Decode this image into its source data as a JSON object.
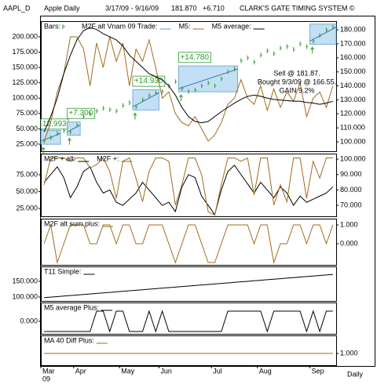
{
  "header": {
    "symbol": "AAPL_D",
    "name": "Apple Daily",
    "range": "3/17/09 - 9/16/09",
    "last": "181.870",
    "change": "+6.710",
    "system": "CLARK'S GATE TIMING SYSTEM ©"
  },
  "chart_data": [
    {
      "type": "combo",
      "series": [
        {
          "name": "Bars:",
          "mark": "bar",
          "axis": "y2",
          "color": "#2e9b2e",
          "values": [
            100.5,
            103,
            106,
            108,
            107,
            112,
            118,
            120,
            122,
            124,
            123,
            122,
            126,
            128,
            125,
            130,
            133,
            135,
            136,
            140,
            143,
            138,
            136,
            137,
            140,
            142,
            140,
            145,
            150,
            152,
            158,
            160,
            157,
            162,
            165,
            163,
            167,
            168,
            166,
            170,
            168,
            172,
            176,
            180,
            181.87
          ]
        },
        {
          "name": "M5:",
          "mark": "line",
          "color": "#a26b1c",
          "values": [
            30,
            60,
            110,
            140,
            200,
            200,
            180,
            120,
            190,
            150,
            200,
            160,
            190,
            120,
            180,
            160,
            195,
            150,
            100,
            110,
            75,
            60,
            55,
            70,
            50,
            30,
            40,
            60,
            90,
            100,
            130,
            100,
            90,
            120,
            80,
            115,
            85,
            110,
            95,
            125,
            70,
            100,
            110,
            85,
            120
          ]
        },
        {
          "name": "M5 average:",
          "mark": "line",
          "color": "#000000",
          "values": [
            45,
            70,
            100,
            140,
            170,
            195,
            210,
            215,
            212,
            205,
            200,
            195,
            185,
            170,
            160,
            150,
            140,
            135,
            130,
            120,
            105,
            85,
            70,
            62,
            60,
            62,
            70,
            78,
            85,
            92,
            98,
            103,
            105,
            103,
            100,
            98,
            97,
            96,
            95,
            95,
            93,
            92,
            90,
            92,
            95
          ]
        }
      ],
      "trades": {
        "name": "M2F alt Vnam 09 Trade:",
        "color": "#b9d9f2",
        "boxes": [
          {
            "start": 0,
            "end": 2,
            "label": "12.993"
          },
          {
            "start": 4,
            "end": 5,
            "label": "+7.300"
          },
          {
            "start": 14,
            "end": 17,
            "label": "+14.930"
          },
          {
            "start": 21,
            "end": 29,
            "label": "+14.780"
          },
          {
            "start": 41,
            "end": 44
          }
        ]
      },
      "notes": [
        "Sell @ 181.87.",
        "Bought 9/3/09 @ 166.55.",
        "GAIN 9.2%"
      ],
      "ylim": [
        13.5,
        225.5
      ],
      "yticks": [
        {
          "value": 25,
          "label": "25.000"
        },
        {
          "value": 50,
          "label": "50.000"
        },
        {
          "value": 75,
          "label": "75.000"
        },
        {
          "value": 100,
          "label": "100.000"
        },
        {
          "value": 125,
          "label": "125.000"
        },
        {
          "value": 150,
          "label": "150.000"
        },
        {
          "value": 175,
          "label": "175.000"
        },
        {
          "value": 200,
          "label": "200.000"
        }
      ],
      "y2lim": [
        93.3,
        186.2
      ],
      "y2ticks": [
        {
          "value": 100,
          "label": "100.000"
        },
        {
          "value": 110,
          "label": "110.000"
        },
        {
          "value": 120,
          "label": "120.000"
        },
        {
          "value": 130,
          "label": "130.000"
        },
        {
          "value": 140,
          "label": "140.000"
        },
        {
          "value": 150,
          "label": "150.000"
        },
        {
          "value": 160,
          "label": "160.000"
        },
        {
          "value": 170,
          "label": "170.000"
        },
        {
          "value": 180,
          "label": "180.000"
        }
      ]
    },
    {
      "type": "line",
      "series": [
        {
          "name": "M2F + alt:",
          "mark": "line",
          "axis": "y2",
          "color": "#000000",
          "values": [
            85,
            90,
            95,
            88,
            75,
            82,
            92,
            95,
            85,
            78,
            80,
            72,
            70,
            74,
            78,
            85,
            80,
            75,
            70,
            72,
            66,
            82,
            90,
            88,
            76,
            70,
            64,
            80,
            92,
            96,
            90,
            84,
            78,
            85,
            80,
            75,
            82,
            78,
            70,
            76,
            72,
            74,
            76,
            78,
            82
          ]
        },
        {
          "name": "M2F +:",
          "mark": "line",
          "color": "#a26b1c",
          "values": [
            60,
            100,
            100,
            100,
            95,
            100,
            100,
            85,
            90,
            100,
            80,
            40,
            95,
            100,
            70,
            35,
            80,
            100,
            100,
            95,
            30,
            60,
            100,
            100,
            75,
            20,
            15,
            60,
            100,
            100,
            95,
            100,
            45,
            100,
            100,
            30,
            60,
            35,
            100,
            100,
            40,
            95,
            70,
            100,
            100
          ]
        }
      ],
      "ylim": [
        13.4,
        106.4
      ],
      "yticks": [
        {
          "value": 25,
          "label": "25.000"
        },
        {
          "value": 50,
          "label": "50.000"
        },
        {
          "value": 75,
          "label": "75.000"
        }
      ],
      "y2lim": [
        62.9,
        103.6
      ],
      "y2ticks": [
        {
          "value": 70,
          "label": "70.000"
        },
        {
          "value": 80,
          "label": "80.000"
        },
        {
          "value": 90,
          "label": "90.000"
        },
        {
          "value": 100,
          "label": "100.000"
        }
      ]
    },
    {
      "type": "line",
      "series": [
        {
          "name": "M2F alt sum plus:",
          "mark": "line",
          "axis": "y2",
          "color": "#a26b1c",
          "values": [
            0,
            1,
            -1,
            0,
            1,
            1,
            1,
            0,
            0,
            1,
            1,
            0,
            1,
            1,
            0,
            0,
            1,
            1,
            1,
            0,
            -1,
            0,
            1,
            1,
            0,
            -1,
            -1,
            0,
            1,
            1,
            1,
            1,
            0,
            1,
            1,
            -1,
            0,
            0,
            1,
            1,
            0,
            1,
            1,
            0,
            1
          ]
        }
      ],
      "y2lim": [
        -1.125,
        1.333
      ],
      "y2ticks": [
        {
          "value": 0,
          "label": "0.000"
        },
        {
          "value": 1,
          "label": "1.000"
        }
      ]
    },
    {
      "type": "line",
      "series": [
        {
          "name": "T11 Simple:",
          "mark": "line",
          "color": "#000000",
          "values": [
            98,
            99.7,
            101.4,
            103,
            104.7,
            106.4,
            108.1,
            109.8,
            111.5,
            113.1,
            114.8,
            116.5,
            118.2,
            119.9,
            121.5,
            123.2,
            124.9,
            126.6,
            128.3,
            130,
            131.6,
            133.3,
            135,
            136.7,
            138.4,
            140,
            141.7,
            143.4,
            145.1,
            146.8,
            148.5,
            150.1,
            151.8,
            153.5,
            155.2,
            156.9,
            158.5,
            160.2,
            161.9,
            163.6,
            165.3,
            167,
            168.6,
            170.3,
            172
          ]
        }
      ],
      "ylim": [
        87.5,
        197.5
      ],
      "yticks": [
        {
          "value": 100,
          "label": "100.000"
        },
        {
          "value": 150,
          "label": "150.000"
        }
      ]
    },
    {
      "type": "line",
      "series": [
        {
          "name": "M5 average Plus:",
          "mark": "line",
          "color": "#000000",
          "values": [
            -1,
            -1,
            -1,
            -1,
            -1,
            -1,
            -1,
            -1,
            1,
            1,
            -1,
            1,
            1,
            -1,
            -1,
            -1,
            1,
            -1,
            1,
            -1,
            -1,
            -1,
            -1,
            -1,
            -1,
            -1,
            -1,
            -1,
            1,
            1,
            1,
            1,
            1,
            1,
            -1,
            1,
            1,
            1,
            1,
            1,
            -1,
            1,
            -1,
            1,
            1
          ]
        }
      ],
      "ylim": [
        -1.23,
        1.846
      ],
      "yticks": [
        {
          "value": 0,
          "label": "0.000"
        }
      ]
    },
    {
      "type": "line",
      "series": [
        {
          "name": "MA 40 Diff Plus:",
          "mark": "line",
          "axis": "y2",
          "color": "#a26b1c",
          "values": [
            1,
            1,
            1,
            1,
            1,
            1,
            1,
            1,
            1,
            1,
            1,
            1,
            1,
            1,
            1,
            1,
            1,
            1,
            1,
            1,
            1,
            1,
            1,
            1,
            1,
            1,
            1,
            1,
            1,
            1,
            1,
            1,
            1,
            1,
            1,
            1,
            1,
            1,
            1,
            1,
            1,
            1,
            1,
            1,
            1
          ]
        }
      ],
      "y2lim": [
        0.5,
        1.767
      ],
      "y2ticks": [
        {
          "value": 1,
          "label": "1.000"
        }
      ],
      "xlim": [
        0,
        45
      ],
      "xticks": [
        {
          "value": 0,
          "label": "Mar"
        },
        {
          "value": 5,
          "label": "Apr"
        },
        {
          "value": 12,
          "label": "May"
        },
        {
          "value": 18,
          "label": "Jun"
        },
        {
          "value": 26,
          "label": "Jul"
        },
        {
          "value": 33,
          "label": "Aug"
        },
        {
          "value": 41,
          "label": "Sep"
        }
      ],
      "x_year_label": "09",
      "timeframe_label": "Daily"
    }
  ]
}
